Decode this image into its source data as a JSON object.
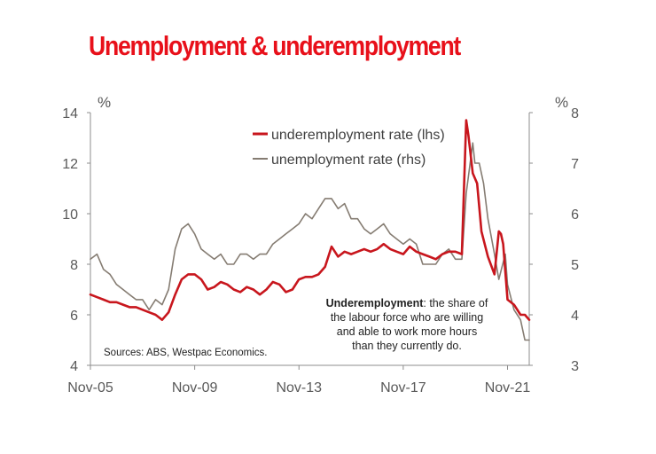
{
  "title": "Unemployment & underemployment",
  "colors": {
    "title": "#e8101a",
    "underemployment": "#c8161d",
    "unemployment": "#857c72",
    "axis": "#8c8c8c",
    "text": "#595959"
  },
  "chart_data": {
    "type": "line",
    "title": "Unemployment & underemployment",
    "y_left": {
      "unit": "%",
      "range": [
        4,
        14
      ],
      "ticks": [
        "4",
        "6",
        "8",
        "10",
        "12",
        "14"
      ]
    },
    "y_right": {
      "unit": "%",
      "range": [
        3,
        8
      ],
      "ticks": [
        "3",
        "4",
        "5",
        "6",
        "7",
        "8"
      ]
    },
    "x_axis": {
      "range": [
        "2005-11",
        "2022-09"
      ],
      "ticks": [
        "Nov-05",
        "Nov-09",
        "Nov-13",
        "Nov-17",
        "Nov-21"
      ]
    },
    "grid": false,
    "legend": {
      "position": "top-center",
      "entries": [
        "underemployment rate (lhs)",
        "unemployment rate (rhs)"
      ]
    },
    "series": [
      {
        "name": "underemployment rate (lhs)",
        "axis": "left",
        "points": [
          [
            "2005-11",
            6.8
          ],
          [
            "2006-02",
            6.7
          ],
          [
            "2006-05",
            6.6
          ],
          [
            "2006-08",
            6.5
          ],
          [
            "2006-11",
            6.5
          ],
          [
            "2007-02",
            6.4
          ],
          [
            "2007-05",
            6.3
          ],
          [
            "2007-08",
            6.3
          ],
          [
            "2007-11",
            6.2
          ],
          [
            "2008-02",
            6.1
          ],
          [
            "2008-05",
            6.0
          ],
          [
            "2008-08",
            5.8
          ],
          [
            "2008-11",
            6.1
          ],
          [
            "2009-02",
            6.8
          ],
          [
            "2009-05",
            7.4
          ],
          [
            "2009-08",
            7.6
          ],
          [
            "2009-11",
            7.6
          ],
          [
            "2010-02",
            7.4
          ],
          [
            "2010-05",
            7.0
          ],
          [
            "2010-08",
            7.1
          ],
          [
            "2010-11",
            7.3
          ],
          [
            "2011-02",
            7.2
          ],
          [
            "2011-05",
            7.0
          ],
          [
            "2011-08",
            6.9
          ],
          [
            "2011-11",
            7.1
          ],
          [
            "2012-02",
            7.0
          ],
          [
            "2012-05",
            6.8
          ],
          [
            "2012-08",
            7.0
          ],
          [
            "2012-11",
            7.3
          ],
          [
            "2013-02",
            7.2
          ],
          [
            "2013-05",
            6.9
          ],
          [
            "2013-08",
            7.0
          ],
          [
            "2013-11",
            7.4
          ],
          [
            "2014-02",
            7.5
          ],
          [
            "2014-05",
            7.5
          ],
          [
            "2014-08",
            7.6
          ],
          [
            "2014-11",
            7.9
          ],
          [
            "2015-02",
            8.7
          ],
          [
            "2015-05",
            8.3
          ],
          [
            "2015-08",
            8.5
          ],
          [
            "2015-11",
            8.4
          ],
          [
            "2016-02",
            8.5
          ],
          [
            "2016-05",
            8.6
          ],
          [
            "2016-08",
            8.5
          ],
          [
            "2016-11",
            8.6
          ],
          [
            "2017-02",
            8.8
          ],
          [
            "2017-05",
            8.6
          ],
          [
            "2017-08",
            8.5
          ],
          [
            "2017-11",
            8.4
          ],
          [
            "2018-02",
            8.7
          ],
          [
            "2018-05",
            8.5
          ],
          [
            "2018-08",
            8.4
          ],
          [
            "2018-11",
            8.3
          ],
          [
            "2019-02",
            8.2
          ],
          [
            "2019-05",
            8.4
          ],
          [
            "2019-08",
            8.5
          ],
          [
            "2019-11",
            8.5
          ],
          [
            "2020-02",
            8.4
          ],
          [
            "2020-04",
            13.7
          ],
          [
            "2020-05",
            13.1
          ],
          [
            "2020-07",
            11.6
          ],
          [
            "2020-09",
            11.2
          ],
          [
            "2020-11",
            9.3
          ],
          [
            "2021-02",
            8.3
          ],
          [
            "2021-05",
            7.6
          ],
          [
            "2021-07",
            9.3
          ],
          [
            "2021-08",
            9.2
          ],
          [
            "2021-09",
            8.8
          ],
          [
            "2021-11",
            6.6
          ],
          [
            "2022-02",
            6.4
          ],
          [
            "2022-05",
            6.0
          ],
          [
            "2022-07",
            6.0
          ],
          [
            "2022-09",
            5.8
          ]
        ]
      },
      {
        "name": "unemployment rate (rhs)",
        "axis": "right",
        "points": [
          [
            "2005-11",
            5.1
          ],
          [
            "2006-02",
            5.2
          ],
          [
            "2006-05",
            4.9
          ],
          [
            "2006-08",
            4.8
          ],
          [
            "2006-11",
            4.6
          ],
          [
            "2007-02",
            4.5
          ],
          [
            "2007-05",
            4.4
          ],
          [
            "2007-08",
            4.3
          ],
          [
            "2007-11",
            4.3
          ],
          [
            "2008-02",
            4.1
          ],
          [
            "2008-05",
            4.3
          ],
          [
            "2008-08",
            4.2
          ],
          [
            "2008-11",
            4.5
          ],
          [
            "2009-02",
            5.3
          ],
          [
            "2009-05",
            5.7
          ],
          [
            "2009-08",
            5.8
          ],
          [
            "2009-11",
            5.6
          ],
          [
            "2010-02",
            5.3
          ],
          [
            "2010-05",
            5.2
          ],
          [
            "2010-08",
            5.1
          ],
          [
            "2010-11",
            5.2
          ],
          [
            "2011-02",
            5.0
          ],
          [
            "2011-05",
            5.0
          ],
          [
            "2011-08",
            5.2
          ],
          [
            "2011-11",
            5.2
          ],
          [
            "2012-02",
            5.1
          ],
          [
            "2012-05",
            5.2
          ],
          [
            "2012-08",
            5.2
          ],
          [
            "2012-11",
            5.4
          ],
          [
            "2013-02",
            5.5
          ],
          [
            "2013-05",
            5.6
          ],
          [
            "2013-08",
            5.7
          ],
          [
            "2013-11",
            5.8
          ],
          [
            "2014-02",
            6.0
          ],
          [
            "2014-05",
            5.9
          ],
          [
            "2014-08",
            6.1
          ],
          [
            "2014-11",
            6.3
          ],
          [
            "2015-02",
            6.3
          ],
          [
            "2015-05",
            6.1
          ],
          [
            "2015-08",
            6.2
          ],
          [
            "2015-11",
            5.9
          ],
          [
            "2016-02",
            5.9
          ],
          [
            "2016-05",
            5.7
          ],
          [
            "2016-08",
            5.6
          ],
          [
            "2016-11",
            5.7
          ],
          [
            "2017-02",
            5.8
          ],
          [
            "2017-05",
            5.6
          ],
          [
            "2017-08",
            5.5
          ],
          [
            "2017-11",
            5.4
          ],
          [
            "2018-02",
            5.5
          ],
          [
            "2018-05",
            5.4
          ],
          [
            "2018-08",
            5.0
          ],
          [
            "2018-11",
            5.0
          ],
          [
            "2019-02",
            5.0
          ],
          [
            "2019-05",
            5.2
          ],
          [
            "2019-08",
            5.3
          ],
          [
            "2019-11",
            5.1
          ],
          [
            "2020-02",
            5.1
          ],
          [
            "2020-04",
            6.4
          ],
          [
            "2020-07",
            7.4
          ],
          [
            "2020-08",
            7.0
          ],
          [
            "2020-10",
            7.0
          ],
          [
            "2020-12",
            6.6
          ],
          [
            "2021-02",
            5.9
          ],
          [
            "2021-05",
            5.2
          ],
          [
            "2021-07",
            4.7
          ],
          [
            "2021-10",
            5.2
          ],
          [
            "2021-11",
            4.6
          ],
          [
            "2022-02",
            4.1
          ],
          [
            "2022-05",
            3.9
          ],
          [
            "2022-07",
            3.5
          ],
          [
            "2022-09",
            3.5
          ]
        ]
      }
    ],
    "annotations": {
      "note_bold": "Underemployment",
      "note_rest": ": the share of",
      "note_lines": [
        "the labour force who are willing",
        "and able to work more hours",
        "than they currently do."
      ],
      "source": "Sources: ABS, Westpac Economics."
    }
  }
}
